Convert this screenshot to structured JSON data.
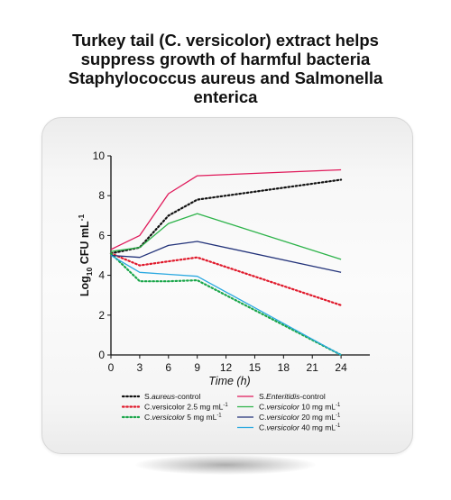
{
  "title_lines": [
    "Turkey tail (C. versicolor) extract helps",
    "suppress growth of harmful bacteria",
    "Staphylococcus aureus and Salmonella",
    "enterica"
  ],
  "chart_data": {
    "type": "line",
    "xlabel": "Time (h)",
    "ylabel_parts": [
      "Log",
      "10",
      " CFU mL",
      "-1"
    ],
    "xlim": [
      0,
      27
    ],
    "ylim": [
      0,
      10
    ],
    "x_ticks": [
      0,
      3,
      6,
      9,
      12,
      15,
      18,
      21,
      24
    ],
    "y_ticks": [
      0,
      2,
      4,
      6,
      8,
      10
    ],
    "grid": false,
    "legend_position": "bottom",
    "series": [
      {
        "name_parts": [
          "S.",
          "aureus",
          "-control"
        ],
        "name_italic": [
          false,
          true,
          false
        ],
        "color": "#111111",
        "dotted": true,
        "x": [
          0,
          3,
          6,
          9,
          24
        ],
        "y": [
          5.1,
          5.4,
          7.0,
          7.8,
          8.8
        ]
      },
      {
        "name_parts": [
          "C.",
          "versicolor",
          " 2.5 mg mL",
          "-1"
        ],
        "name_italic": [
          false,
          false,
          false,
          false
        ],
        "color": "#e0192b",
        "dotted": true,
        "x": [
          0,
          3,
          6,
          9,
          24
        ],
        "y": [
          5.1,
          4.5,
          4.7,
          4.9,
          2.5
        ]
      },
      {
        "name_parts": [
          "C.",
          "versicolor",
          " 5 mg mL",
          "-1"
        ],
        "name_italic": [
          false,
          true,
          false,
          false
        ],
        "color": "#1aa64a",
        "dotted": true,
        "x": [
          0,
          3,
          6,
          9,
          24
        ],
        "y": [
          5.1,
          3.7,
          3.7,
          3.75,
          0.0
        ]
      },
      {
        "name_parts": [
          "S.",
          "Enteritidis",
          "-control"
        ],
        "name_italic": [
          false,
          true,
          false
        ],
        "color": "#e0195a",
        "dotted": false,
        "x": [
          0,
          3,
          6,
          9,
          24
        ],
        "y": [
          5.3,
          6.0,
          8.1,
          9.0,
          9.3
        ]
      },
      {
        "name_parts": [
          "C.",
          "versicolor",
          " 10 mg mL",
          "-1"
        ],
        "name_italic": [
          false,
          true,
          false,
          false
        ],
        "color": "#2db34a",
        "dotted": false,
        "x": [
          0,
          3,
          6,
          9,
          24
        ],
        "y": [
          5.2,
          5.4,
          6.6,
          7.1,
          4.8
        ]
      },
      {
        "name_parts": [
          "C.",
          "versicolor",
          " 20 mg mL",
          "-1"
        ],
        "name_italic": [
          false,
          true,
          false,
          false
        ],
        "color": "#23337a",
        "dotted": false,
        "x": [
          0,
          3,
          6,
          9,
          24
        ],
        "y": [
          5.0,
          4.9,
          5.5,
          5.7,
          4.15
        ]
      },
      {
        "name_parts": [
          "C.",
          "versicolor",
          " 40 mg mL",
          "-1"
        ],
        "name_italic": [
          false,
          true,
          false,
          false
        ],
        "color": "#2aa8e0",
        "dotted": false,
        "x": [
          0,
          3,
          6,
          9,
          24
        ],
        "y": [
          5.0,
          4.15,
          4.05,
          3.95,
          0.0
        ]
      }
    ]
  }
}
